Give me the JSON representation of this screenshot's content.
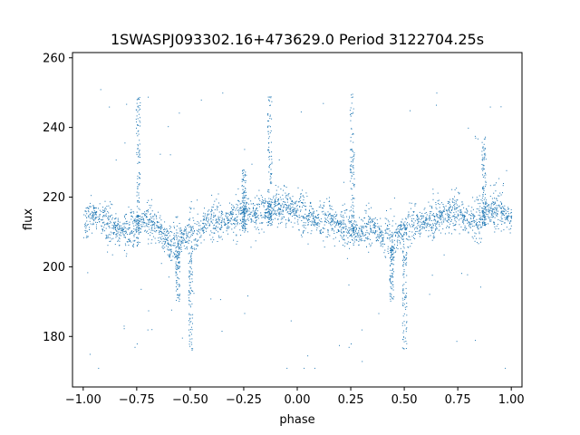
{
  "chart_data": {
    "type": "scatter",
    "title": "1SWASPJ093302.16+473629.0 Period 3122704.25s",
    "xlabel": "phase",
    "ylabel": "flux",
    "xlim": [
      -1.05,
      1.05
    ],
    "ylim": [
      165.5,
      261.5
    ],
    "xticks": [
      -1.0,
      -0.75,
      -0.5,
      -0.25,
      0.0,
      0.25,
      0.5,
      0.75,
      1.0
    ],
    "xtick_labels": [
      "−1.00",
      "−0.75",
      "−0.50",
      "−0.25",
      "0.00",
      "0.25",
      "0.50",
      "0.75",
      "1.00"
    ],
    "yticks": [
      180,
      200,
      220,
      240,
      260
    ],
    "ytick_labels": [
      "180",
      "200",
      "220",
      "240",
      "260"
    ],
    "grid": false,
    "legend": "none",
    "marker_color": "#1f77b4",
    "series": [
      {
        "trend": {
          "x": [
            -1.0,
            -0.95,
            -0.9,
            -0.85,
            -0.8,
            -0.75,
            -0.7,
            -0.65,
            -0.6,
            -0.55,
            -0.5,
            -0.45,
            -0.4,
            -0.35,
            -0.3,
            -0.25,
            -0.2,
            -0.15,
            -0.1,
            -0.05,
            0.0,
            0.05,
            0.1,
            0.15,
            0.2,
            0.25,
            0.3,
            0.35,
            0.4,
            0.45,
            0.5,
            0.55,
            0.6,
            0.65,
            0.7,
            0.75,
            0.8,
            0.85,
            0.9,
            0.95,
            1.0
          ],
          "y": [
            212,
            215,
            213,
            211,
            210,
            212,
            214,
            211,
            206,
            208,
            210,
            211,
            214,
            213,
            214,
            216,
            215,
            216,
            217,
            218,
            216,
            215,
            213,
            214,
            212,
            211,
            210,
            212,
            208,
            208,
            211,
            212,
            213,
            214,
            215,
            216,
            213,
            214,
            216,
            217,
            213
          ]
        },
        "spread": 7,
        "spikes": [
          {
            "x": -0.745,
            "y_min": 206,
            "y_max": 250
          },
          {
            "x": -0.25,
            "y_min": 210,
            "y_max": 228
          },
          {
            "x": -0.13,
            "y_min": 212,
            "y_max": 250
          },
          {
            "x": 0.255,
            "y_min": 206,
            "y_max": 250
          },
          {
            "x": 0.87,
            "y_min": 212,
            "y_max": 238
          }
        ],
        "dips": [
          {
            "x": -0.5,
            "y_min": 176,
            "y_max": 206
          },
          {
            "x": 0.5,
            "y_min": 176,
            "y_max": 206
          },
          {
            "x": -0.56,
            "y_min": 190,
            "y_max": 206
          },
          {
            "x": 0.44,
            "y_min": 190,
            "y_max": 206
          }
        ],
        "outliers": [
          {
            "x": -0.97,
            "y": 175
          },
          {
            "x": -0.92,
            "y": 251
          },
          {
            "x": -0.76,
            "y": 177
          },
          {
            "x": -0.75,
            "y": 178
          },
          {
            "x": -0.7,
            "y": 182
          },
          {
            "x": -0.93,
            "y": 171
          },
          {
            "x": 0.24,
            "y": 177
          },
          {
            "x": 0.25,
            "y": 178
          },
          {
            "x": 0.3,
            "y": 182
          },
          {
            "x": 0.03,
            "y": 171
          },
          {
            "x": 0.08,
            "y": 171
          },
          {
            "x": -0.05,
            "y": 171
          },
          {
            "x": 0.97,
            "y": 171
          },
          {
            "x": 0.83,
            "y": 179
          },
          {
            "x": -0.88,
            "y": 246
          },
          {
            "x": 0.12,
            "y": 247
          },
          {
            "x": 0.9,
            "y": 246
          },
          {
            "x": -0.35,
            "y": 250
          },
          {
            "x": 0.65,
            "y": 250
          },
          {
            "x": -0.45,
            "y": 248
          }
        ]
      }
    ]
  }
}
